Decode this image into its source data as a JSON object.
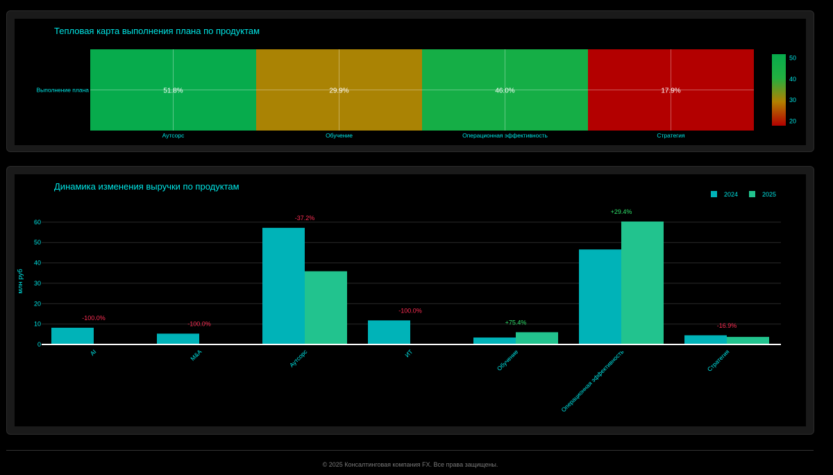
{
  "chart_data": [
    {
      "type": "heatmap",
      "title": "Тепловая карта выполнения плана по продуктам",
      "y_categories": [
        "Выполнение плана"
      ],
      "x_categories": [
        "Аутсорс",
        "Обучение",
        "Операционная эффективность",
        "Стратегия"
      ],
      "values": [
        51.8,
        29.9,
        46.0,
        17.9
      ],
      "value_labels": [
        "51.8%",
        "29.9%",
        "46.0%",
        "17.9%"
      ],
      "colorscale": {
        "min": 17.9,
        "max": 51.8,
        "colors": [
          "#b30000",
          "#b38000",
          "#22b040",
          "#07ab4c"
        ]
      },
      "colorbar_ticks": [
        20,
        30,
        40,
        50
      ],
      "colors": {
        "text": "#00e5e5",
        "grid": "#ffffff"
      }
    },
    {
      "type": "bar",
      "title": "Динамика изменения выручки по продуктам",
      "ylabel": "млн руб",
      "xlabel": "",
      "categories": [
        "AI",
        "M&A",
        "Аутсорс",
        "ИТ",
        "Обучение",
        "Операционная эффективность",
        "Стратегия"
      ],
      "series": [
        {
          "name": "2024",
          "values": [
            8.2,
            5.3,
            57.2,
            11.8,
            3.4,
            46.6,
            4.5
          ],
          "color": "#00b3b8"
        },
        {
          "name": "2025",
          "values": [
            0,
            0,
            35.9,
            0,
            6.0,
            60.3,
            3.7
          ],
          "color": "#22c38e"
        }
      ],
      "change_labels": [
        "-100.0%",
        "-100.0%",
        "-37.2%",
        "-100.0%",
        "+75.4%",
        "+29.4%",
        "-16.9%"
      ],
      "ylim": [
        0,
        62
      ],
      "yticks": [
        0,
        10,
        20,
        30,
        40,
        50,
        60
      ],
      "legend_position": "top-right",
      "colors": {
        "negative": "#ff2e54",
        "positive": "#2ee06a",
        "text": "#00e5e5"
      }
    }
  ],
  "footer": {
    "text": "© 2025 Консалтинговая компания FX. Все права защищены."
  }
}
